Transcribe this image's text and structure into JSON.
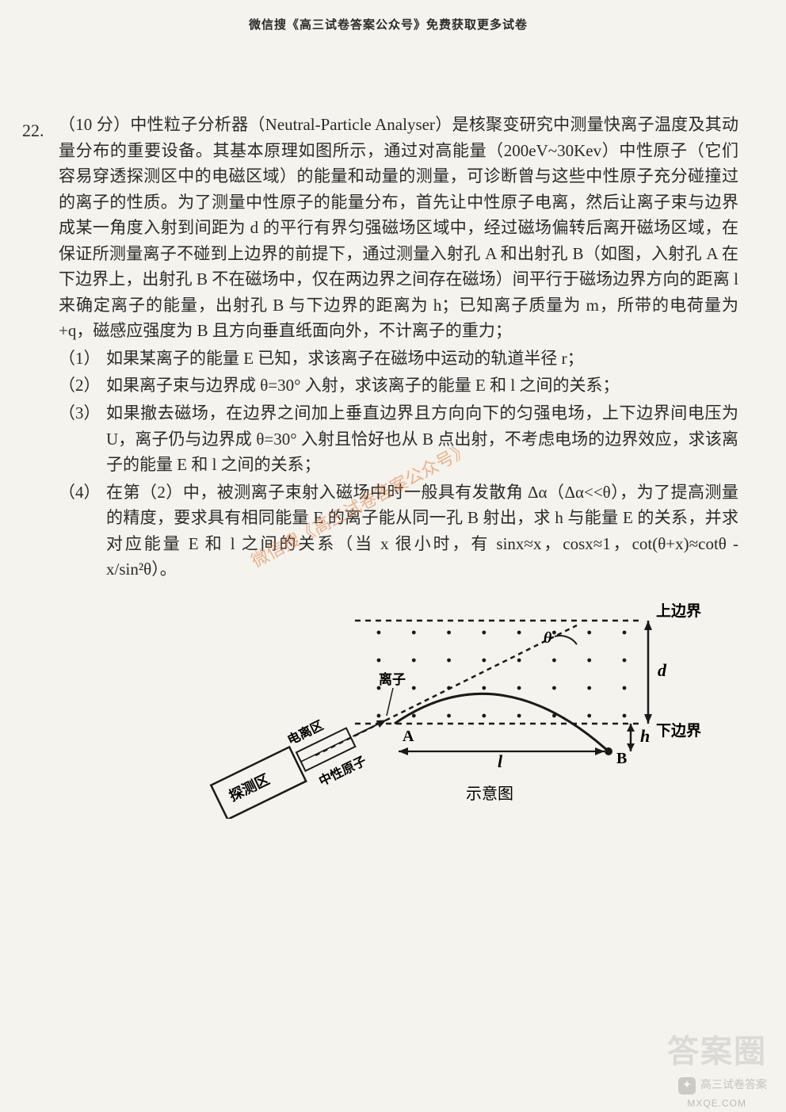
{
  "header": "微信搜《高三试卷答案公众号》免费获取更多试卷",
  "question": {
    "number": "22.",
    "points_prefix": "（10 分）",
    "intro": "中性粒子分析器（Neutral-Particle Analyser）是核聚变研究中测量快离子温度及其动量分布的重要设备。其基本原理如图所示，通过对高能量（200eV~30Kev）中性原子（它们容易穿透探测区中的电磁区域）的能量和动量的测量，可诊断曾与这些中性原子充分碰撞过的离子的性质。为了测量中性原子的能量分布，首先让中性原子电离，然后让离子束与边界成某一角度入射到间距为 d 的平行有界匀强磁场区域中，经过磁场偏转后离开磁场区域，在保证所测量离子不碰到上边界的前提下，通过测量入射孔 A 和出射孔 B（如图，入射孔 A 在下边界上，出射孔 B 不在磁场中，仅在两边界之间存在磁场）间平行于磁场边界方向的距离 l 来确定离子的能量，出射孔 B 与下边界的距离为 h；已知离子质量为 m，所带的电荷量为+q，磁感应强度为 B 且方向垂直纸面向外，不计离子的重力；",
    "sub1": {
      "num": "（1）",
      "text": "如果某离子的能量 E 已知，求该离子在磁场中运动的轨道半径 r；"
    },
    "sub2": {
      "num": "（2）",
      "text": "如果离子束与边界成 θ=30° 入射，求该离子的能量 E 和 l 之间的关系；"
    },
    "sub3": {
      "num": "（3）",
      "text": "如果撤去磁场，在边界之间加上垂直边界且方向向下的匀强电场，上下边界间电压为 U，离子仍与边界成 θ=30° 入射且恰好也从 B 点出射，不考虑电场的边界效应，求该离子的能量 E 和 l 之间的关系；"
    },
    "sub4": {
      "num": "（4）",
      "text": "在第（2）中，被测离子束射入磁场中时一般具有发散角 Δα（Δα<<θ），为了提高测量的精度，要求具有相同能量 E 的离子能从同一孔 B 射出，求 h 与能量 E 的关系，并求对应能量 E 和 l 之间的关系（当 x 很小时，有 sinx≈x，cosx≈1，cot(θ+x)≈cotθ - x/sin²θ）。"
    }
  },
  "diagram": {
    "type": "physics-schematic",
    "background": "#f5f3ee",
    "stroke": "#1a1a1a",
    "stroke_width": 2.2,
    "dash": "6,5",
    "labels": {
      "upper": "上边界",
      "lower": "下边界",
      "ion": "离子",
      "ionize": "电离区",
      "detect": "探测区",
      "neutral": "中性原子",
      "caption": "示意图",
      "theta": "θ",
      "A": "A",
      "B": "B",
      "l": "l",
      "d": "d",
      "h": "h"
    },
    "field_dots": {
      "rows": 4,
      "cols": 8,
      "r": 2.4,
      "color": "#1a1a1a"
    },
    "font_size": 18,
    "font_size_big": 22
  },
  "watermark": {
    "text": "微信搜《高三试卷答案公众号》",
    "color": "#e07a3a",
    "rotate_deg": 30,
    "font_size": 22
  },
  "bottom_right": {
    "logo": "答案圈",
    "wechat_label": "高三试卷答案",
    "url": "MXQE.COM"
  }
}
